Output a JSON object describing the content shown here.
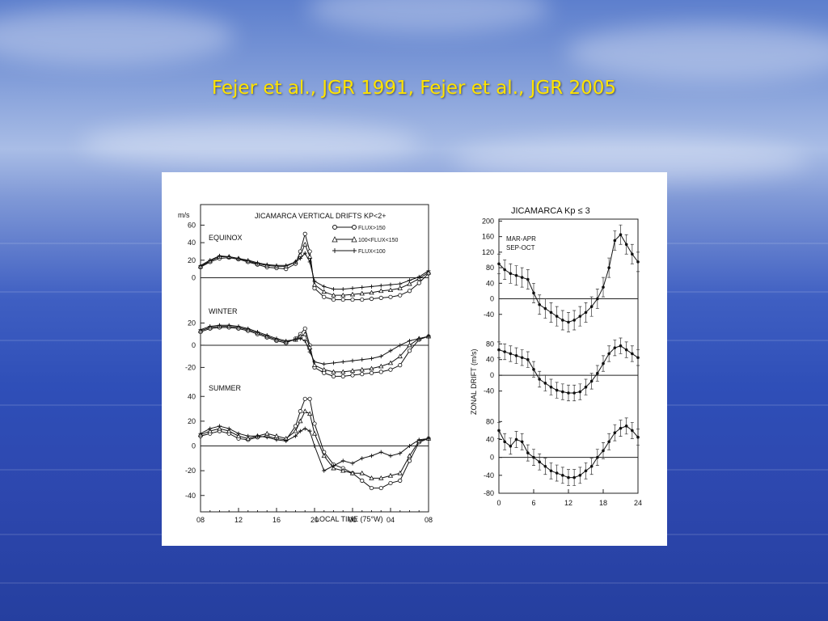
{
  "slide": {
    "title": "Fejer et al., JGR 1991, Fejer et al., JGR 2005",
    "background_color": "#3553bb",
    "title_color": "#ffe300"
  },
  "chart_data": [
    {
      "type": "line",
      "title": "JICAMARCA VERTICAL DRIFTS KP<2+",
      "ylabel": "m/s",
      "xlabel": "LOCAL TIME (75°W)",
      "x_ticks": [
        "08",
        "12",
        "16",
        "20",
        "00",
        "04",
        "08"
      ],
      "x_range": [
        8,
        32
      ],
      "legend": [
        "FLUX>150",
        "100<FLUX<150",
        "FLUX<100"
      ],
      "legend_position": "top-right",
      "panels": [
        {
          "name": "EQUINOX",
          "y_ticks": [
            60,
            40,
            20,
            0
          ],
          "ylim": [
            -30,
            65
          ],
          "x": [
            8,
            9,
            10,
            11,
            12,
            13,
            14,
            15,
            16,
            17,
            18,
            18.5,
            19,
            19.5,
            20,
            21,
            22,
            23,
            24,
            25,
            26,
            27,
            28,
            29,
            30,
            31,
            32
          ],
          "series": [
            {
              "name": "FLUX>150",
              "values": [
                12,
                18,
                22,
                23,
                21,
                18,
                15,
                12,
                11,
                10,
                16,
                30,
                50,
                30,
                -12,
                -22,
                -25,
                -25,
                -25,
                -25,
                -24,
                -23,
                -22,
                -20,
                -15,
                -6,
                5
              ]
            },
            {
              "name": "100<FLUX<150",
              "values": [
                13,
                19,
                24,
                24,
                22,
                19,
                16,
                14,
                13,
                13,
                18,
                26,
                38,
                24,
                -8,
                -16,
                -20,
                -20,
                -19,
                -18,
                -17,
                -15,
                -14,
                -12,
                -7,
                -1,
                6
              ]
            },
            {
              "name": "FLUX<100",
              "values": [
                14,
                20,
                25,
                24,
                22,
                20,
                17,
                15,
                14,
                14,
                18,
                22,
                28,
                18,
                -4,
                -10,
                -13,
                -13,
                -12,
                -11,
                -10,
                -9,
                -8,
                -7,
                -3,
                1,
                8
              ]
            }
          ]
        },
        {
          "name": "WINTER",
          "y_ticks": [
            20,
            0,
            -20
          ],
          "ylim": [
            -35,
            32
          ],
          "x": [
            8,
            9,
            10,
            11,
            12,
            13,
            14,
            15,
            16,
            17,
            18,
            18.5,
            19,
            19.5,
            20,
            21,
            22,
            23,
            24,
            25,
            26,
            27,
            28,
            29,
            30,
            31,
            32
          ],
          "series": [
            {
              "name": "FLUX>150",
              "values": [
                12,
                15,
                16,
                16,
                15,
                13,
                10,
                7,
                4,
                2,
                6,
                10,
                15,
                0,
                -20,
                -25,
                -28,
                -28,
                -27,
                -26,
                -25,
                -24,
                -22,
                -18,
                -5,
                5,
                8
              ]
            },
            {
              "name": "100<FLUX<150",
              "values": [
                13,
                16,
                17,
                17,
                16,
                14,
                11,
                8,
                5,
                3,
                5,
                8,
                10,
                -2,
                -18,
                -22,
                -24,
                -24,
                -23,
                -22,
                -21,
                -19,
                -16,
                -10,
                0,
                6,
                8
              ]
            },
            {
              "name": "FLUX<100",
              "values": [
                14,
                17,
                18,
                18,
                17,
                15,
                12,
                9,
                6,
                4,
                5,
                6,
                4,
                -6,
                -15,
                -17,
                -16,
                -15,
                -14,
                -13,
                -12,
                -10,
                -5,
                0,
                4,
                6,
                8
              ]
            }
          ]
        },
        {
          "name": "SUMMER",
          "y_ticks": [
            40,
            20,
            0,
            -20,
            -40
          ],
          "ylim": [
            -48,
            48
          ],
          "x": [
            8,
            9,
            10,
            11,
            12,
            13,
            14,
            15,
            16,
            17,
            18,
            18.5,
            19,
            19.5,
            20,
            21,
            22,
            23,
            24,
            25,
            26,
            27,
            28,
            29,
            30,
            31,
            32
          ],
          "series": [
            {
              "name": "FLUX>150",
              "values": [
                8,
                10,
                12,
                10,
                6,
                5,
                7,
                8,
                6,
                5,
                16,
                28,
                38,
                38,
                18,
                -5,
                -15,
                -18,
                -22,
                -28,
                -34,
                -34,
                -30,
                -28,
                -12,
                3,
                6
              ]
            },
            {
              "name": "100<FLUX<150",
              "values": [
                9,
                12,
                14,
                12,
                8,
                6,
                8,
                10,
                8,
                6,
                12,
                20,
                28,
                26,
                10,
                -8,
                -18,
                -20,
                -22,
                -22,
                -26,
                -26,
                -24,
                -22,
                -8,
                4,
                6
              ]
            },
            {
              "name": "FLUX<100",
              "values": [
                10,
                14,
                16,
                14,
                10,
                8,
                8,
                7,
                5,
                4,
                8,
                12,
                14,
                12,
                0,
                -20,
                -16,
                -12,
                -14,
                -10,
                -8,
                -5,
                -8,
                -6,
                0,
                5,
                6
              ]
            }
          ]
        }
      ]
    },
    {
      "type": "line",
      "title": "JICAMARCA Kp ≤ 3",
      "ylabel": "ZONAL DRIFT (m/s)",
      "x_ticks": [
        "0",
        "6",
        "12",
        "18",
        "24"
      ],
      "x_range": [
        0,
        24
      ],
      "x": [
        0,
        1,
        2,
        3,
        4,
        5,
        6,
        7,
        8,
        9,
        10,
        11,
        12,
        13,
        14,
        15,
        16,
        17,
        18,
        19,
        20,
        21,
        22,
        23,
        24
      ],
      "panels": [
        {
          "name": "MAR-APR SEP-OCT",
          "label_lines": [
            "MAR-APR",
            "SEP-OCT"
          ],
          "y_ticks": [
            200,
            160,
            120,
            80,
            40,
            0,
            -40
          ],
          "ylim": [
            -80,
            205
          ],
          "values": [
            90,
            75,
            65,
            60,
            55,
            50,
            15,
            -15,
            -25,
            -35,
            -45,
            -55,
            -60,
            -55,
            -45,
            -35,
            -20,
            0,
            30,
            80,
            150,
            165,
            140,
            115,
            95
          ],
          "error": 25
        },
        {
          "name": "panel-2",
          "y_ticks": [
            80,
            40,
            0,
            -40
          ],
          "ylim": [
            -80,
            95
          ],
          "values": [
            65,
            60,
            55,
            50,
            45,
            40,
            15,
            -10,
            -20,
            -30,
            -38,
            -42,
            -45,
            -45,
            -42,
            -30,
            -15,
            5,
            30,
            55,
            70,
            75,
            65,
            55,
            45
          ],
          "error": 20
        },
        {
          "name": "panel-3",
          "y_ticks": [
            80,
            40,
            0,
            -40,
            -80
          ],
          "ylim": [
            -80,
            95
          ],
          "values": [
            60,
            35,
            25,
            40,
            35,
            10,
            0,
            -10,
            -20,
            -30,
            -35,
            -40,
            -45,
            -45,
            -40,
            -30,
            -20,
            0,
            15,
            35,
            55,
            65,
            70,
            60,
            45
          ],
          "error": 18
        }
      ]
    }
  ]
}
